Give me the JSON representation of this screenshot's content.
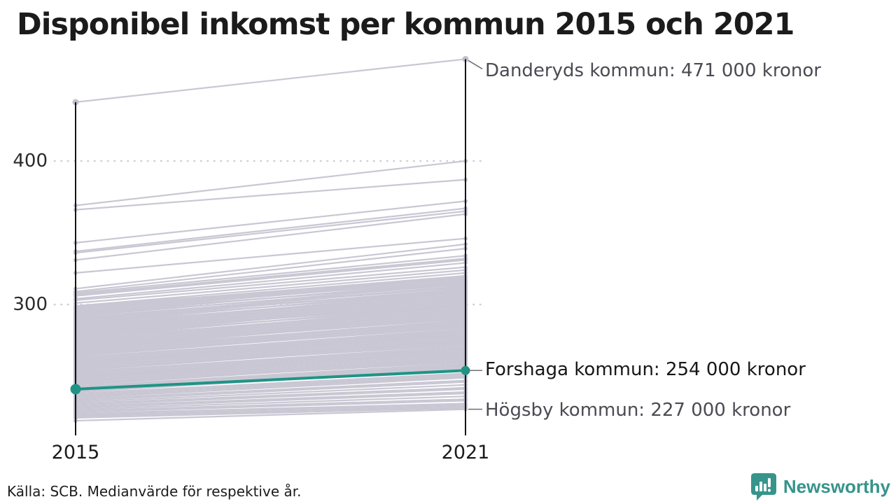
{
  "title": "Disponibel inkomst per kommun 2015 och 2021",
  "source": "Källa: SCB. Medianvärde för respektive år.",
  "logo": {
    "text": "Newsworthy"
  },
  "colors": {
    "line": "#c9c7d3",
    "dot": "#c0beca",
    "highlight": "#1f9486",
    "axis": "#141414",
    "grid": "#cfcfd6",
    "connector": "#6e6e76",
    "logo_teal": "#36948b"
  },
  "chart_data": {
    "type": "line",
    "subtype": "slope",
    "title": "Disponibel inkomst per kommun 2015 och 2021",
    "categories": [
      "2015",
      "2021"
    ],
    "unit": "tusen kronor",
    "yticks": [
      {
        "label": "400",
        "value": 400
      },
      {
        "label": "300",
        "value": 300
      }
    ],
    "ylim": [
      213,
      475
    ],
    "grid": "dotted-horizontal",
    "annotations": [
      {
        "text": "Danderyds kommun: 471 000 kronor",
        "value_2021": 471,
        "style": "gray"
      },
      {
        "text": "Forshaga kommun: 254 000 kronor",
        "value_2021": 254,
        "style": "dark"
      },
      {
        "text": "Högsby kommun: 227 000 kronor",
        "value_2021": 227,
        "style": "gray"
      }
    ],
    "highlight_series": {
      "name": "Forshaga kommun",
      "values": [
        241,
        254
      ]
    },
    "series_pairs_note": "each pair = [value 2015, value 2021] in thousands of kronor, one line per municipality (estimated from pixels)",
    "series_pairs": [
      [
        441,
        471
      ],
      [
        369,
        400
      ],
      [
        366,
        387
      ],
      [
        343,
        372
      ],
      [
        337,
        367
      ],
      [
        336,
        365
      ],
      [
        331,
        363
      ],
      [
        322,
        346
      ],
      [
        311,
        342
      ],
      [
        309,
        339
      ],
      [
        308,
        334
      ],
      [
        307,
        332
      ],
      [
        306,
        331
      ],
      [
        304,
        329
      ],
      [
        303,
        326
      ],
      [
        301,
        324
      ],
      [
        299,
        322
      ],
      [
        299,
        318
      ],
      [
        298,
        320
      ],
      [
        297,
        319
      ],
      [
        297,
        316
      ],
      [
        296,
        318
      ],
      [
        295,
        317
      ],
      [
        295,
        314
      ],
      [
        294,
        315
      ],
      [
        293,
        316
      ],
      [
        293,
        312
      ],
      [
        292,
        314
      ],
      [
        291,
        312
      ],
      [
        291,
        310
      ],
      [
        290,
        313
      ],
      [
        290,
        310
      ],
      [
        289,
        311
      ],
      [
        289,
        308
      ],
      [
        288,
        309
      ],
      [
        287,
        310
      ],
      [
        287,
        306
      ],
      [
        286,
        308
      ],
      [
        285,
        307
      ],
      [
        285,
        304
      ],
      [
        284,
        306
      ],
      [
        283,
        305
      ],
      [
        283,
        302
      ],
      [
        282,
        304
      ],
      [
        281,
        303
      ],
      [
        281,
        300
      ],
      [
        280,
        302
      ],
      [
        280,
        300
      ],
      [
        279,
        301
      ],
      [
        279,
        298
      ],
      [
        278,
        299
      ],
      [
        277,
        300
      ],
      [
        277,
        296
      ],
      [
        276,
        298
      ],
      [
        275,
        297
      ],
      [
        275,
        294
      ],
      [
        274,
        296
      ],
      [
        273,
        295
      ],
      [
        273,
        292
      ],
      [
        272,
        294
      ],
      [
        271,
        293
      ],
      [
        271,
        290
      ],
      [
        270,
        292
      ],
      [
        270,
        290
      ],
      [
        269,
        291
      ],
      [
        269,
        288
      ],
      [
        268,
        289
      ],
      [
        267,
        288
      ],
      [
        267,
        286
      ],
      [
        266,
        287
      ],
      [
        265,
        286
      ],
      [
        265,
        284
      ],
      [
        264,
        285
      ],
      [
        263,
        283
      ],
      [
        263,
        281
      ],
      [
        262,
        282
      ],
      [
        261,
        281
      ],
      [
        261,
        279
      ],
      [
        260,
        280
      ],
      [
        260,
        278
      ],
      [
        259,
        279
      ],
      [
        259,
        277
      ],
      [
        258,
        277
      ],
      [
        257,
        276
      ],
      [
        257,
        274
      ],
      [
        256,
        275
      ],
      [
        255,
        274
      ],
      [
        255,
        272
      ],
      [
        254,
        273
      ],
      [
        253,
        271
      ],
      [
        253,
        269
      ],
      [
        252,
        270
      ],
      [
        251,
        269
      ],
      [
        251,
        267
      ],
      [
        250,
        268
      ],
      [
        250,
        266
      ],
      [
        249,
        267
      ],
      [
        249,
        265
      ],
      [
        248,
        265
      ],
      [
        247,
        264
      ],
      [
        247,
        262
      ],
      [
        246,
        263
      ],
      [
        245,
        262
      ],
      [
        245,
        260
      ],
      [
        244,
        261
      ],
      [
        243,
        259
      ],
      [
        243,
        257
      ],
      [
        242,
        258
      ],
      [
        241,
        257
      ],
      [
        240,
        256
      ],
      [
        240,
        254
      ],
      [
        239,
        255
      ],
      [
        238,
        252
      ],
      [
        237,
        251
      ],
      [
        236,
        250
      ],
      [
        235,
        249
      ],
      [
        234,
        247
      ],
      [
        233,
        246
      ],
      [
        232,
        244
      ],
      [
        231,
        242
      ],
      [
        230,
        241
      ],
      [
        229,
        239
      ],
      [
        228,
        238
      ],
      [
        227,
        236
      ],
      [
        226,
        234
      ],
      [
        225,
        233
      ],
      [
        224,
        231
      ],
      [
        223,
        230
      ],
      [
        222,
        229
      ],
      [
        221,
        228
      ],
      [
        219,
        227
      ]
    ]
  }
}
